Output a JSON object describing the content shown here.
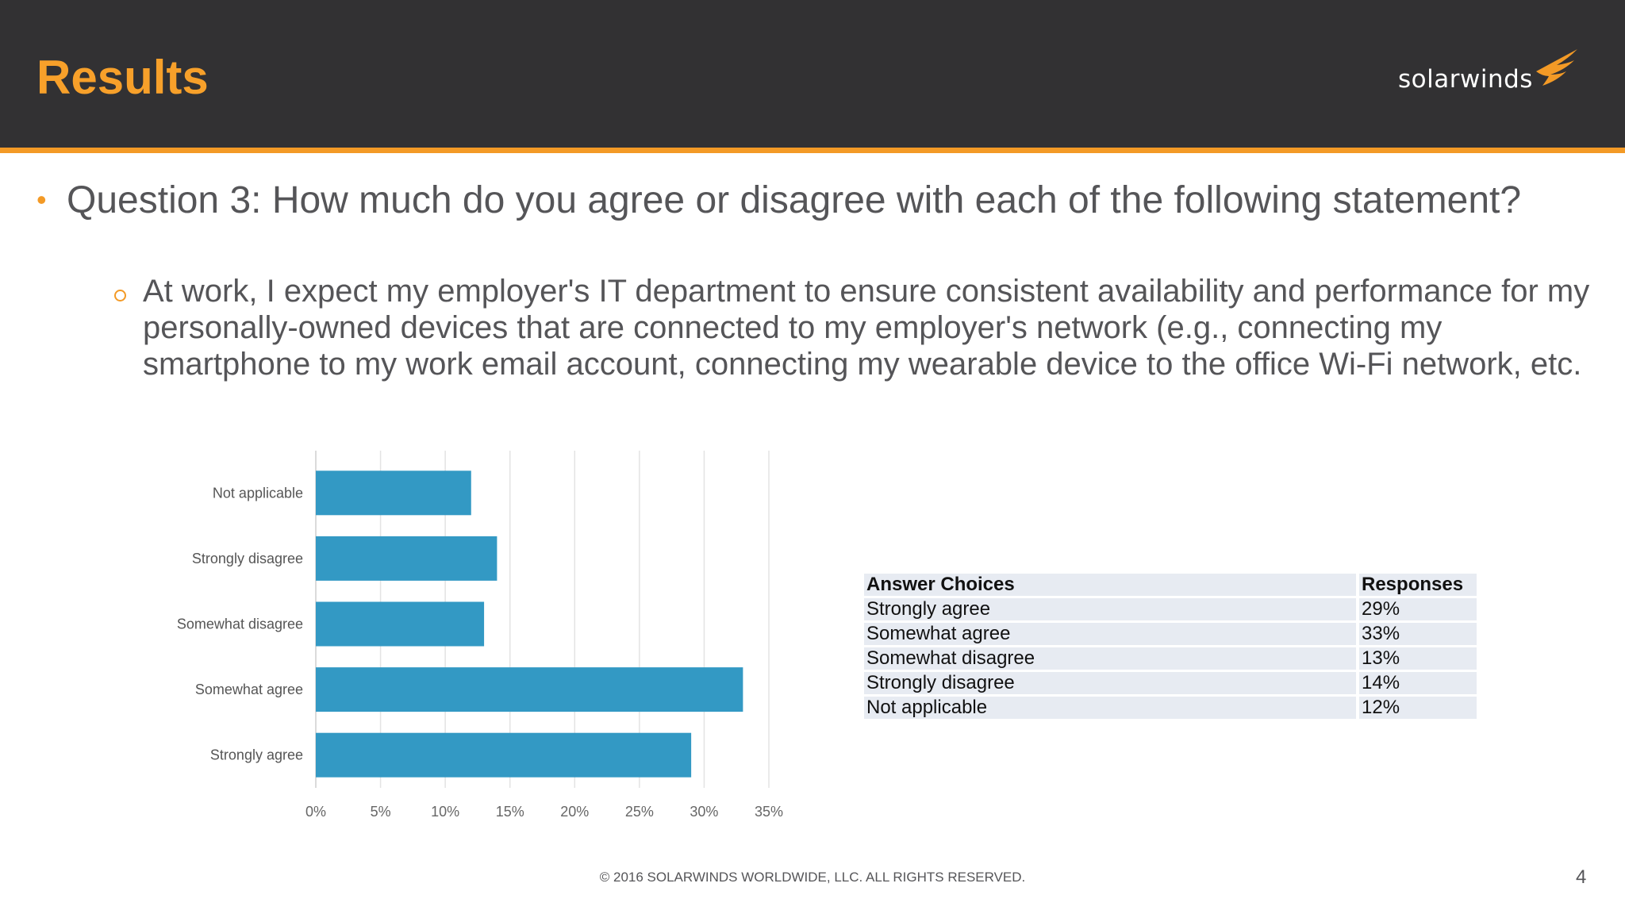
{
  "header": {
    "title": "Results",
    "logo_text": "solarwinds",
    "logo_icon": "solarwinds-flame-icon"
  },
  "content": {
    "question": "Question 3: How much do you agree or disagree with each of the following statement?",
    "statement": "At work, I expect my employer's IT department to ensure consistent availability and performance for my personally-owned devices that are connected to my employer's network (e.g., connecting my smartphone to my work email account, connecting my wearable device to the office Wi-Fi network, etc."
  },
  "chart_data": {
    "type": "bar",
    "orientation": "horizontal",
    "categories": [
      "Not applicable",
      "Strongly disagree",
      "Somewhat disagree",
      "Somewhat agree",
      "Strongly agree"
    ],
    "values": [
      12,
      14,
      13,
      33,
      29
    ],
    "xlim": [
      0,
      35
    ],
    "x_ticks": [
      "0%",
      "5%",
      "10%",
      "15%",
      "20%",
      "25%",
      "30%",
      "35%"
    ],
    "grid": true,
    "bar_color": "#3399c4"
  },
  "table": {
    "headers": [
      "Answer Choices",
      "Responses"
    ],
    "rows": [
      [
        "Strongly agree",
        "29%"
      ],
      [
        "Somewhat agree",
        "33%"
      ],
      [
        "Somewhat disagree",
        "13%"
      ],
      [
        "Strongly disagree",
        "14%"
      ],
      [
        "Not applicable",
        "12%"
      ]
    ]
  },
  "footer": {
    "copyright": "© 2016 SOLARWINDS WORLDWIDE, LLC. ALL RIGHTS RESERVED.",
    "page_number": "4"
  },
  "colors": {
    "accent": "#f39a26",
    "header_bg": "#323133",
    "title": "#f7a02a"
  }
}
